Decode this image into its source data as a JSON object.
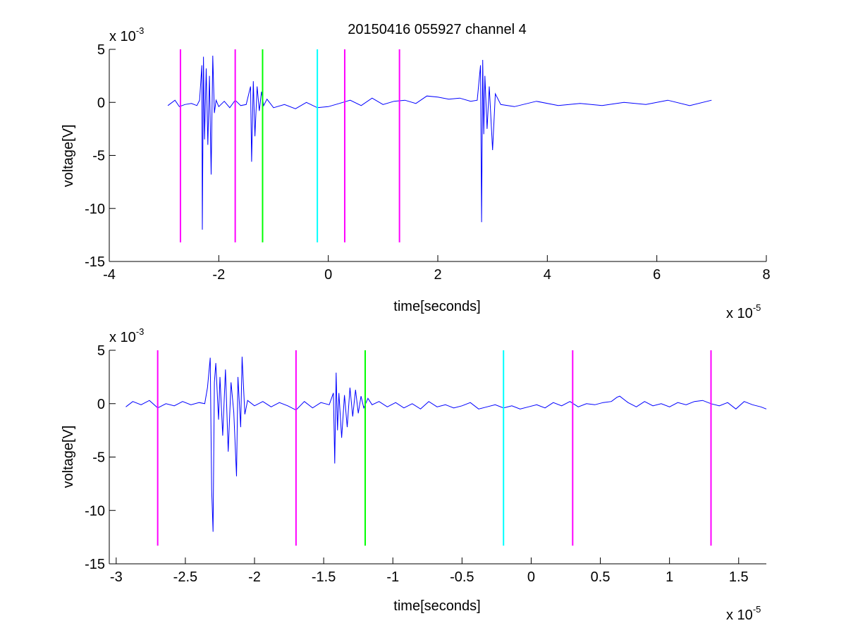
{
  "figure": {
    "title": "20150416 055927 channel 4"
  },
  "chart_data": [
    {
      "type": "line",
      "title": "20150416 055927 channel 4",
      "xlabel": "time[seconds]",
      "ylabel": "voltage[V]",
      "x_exponent_label": "x 10",
      "x_exponent_power": "-5",
      "y_exponent_label": "x 10",
      "y_exponent_power": "-3",
      "xlim": [
        -4,
        8
      ],
      "ylim": [
        -15,
        5
      ],
      "xticks": [
        -4,
        -2,
        0,
        2,
        4,
        6,
        8
      ],
      "xtick_labels": [
        "-4",
        "-2",
        "0",
        "2",
        "4",
        "6",
        "8"
      ],
      "yticks": [
        5,
        0,
        -5,
        -10,
        -15
      ],
      "ytick_labels": [
        "5",
        "0",
        "-5",
        "-10",
        "-15"
      ],
      "grid": false,
      "series": [
        {
          "color": "#0000ff",
          "x": [
            -2.93,
            -2.8,
            -2.72,
            -2.62,
            -2.5,
            -2.4,
            -2.35,
            -2.31,
            -2.3,
            -2.28,
            -2.26,
            -2.23,
            -2.2,
            -2.17,
            -2.14,
            -2.11,
            -2.08,
            -2.05,
            -2.0,
            -1.9,
            -1.8,
            -1.7,
            -1.6,
            -1.5,
            -1.42,
            -1.4,
            -1.37,
            -1.34,
            -1.3,
            -1.26,
            -1.22,
            -1.18,
            -1.12,
            -1.0,
            -0.8,
            -0.6,
            -0.4,
            -0.2,
            0.0,
            0.2,
            0.4,
            0.6,
            0.8,
            1.0,
            1.2,
            1.4,
            1.6,
            1.8,
            2.0,
            2.2,
            2.4,
            2.6,
            2.72,
            2.78,
            2.8,
            2.82,
            2.84,
            2.86,
            2.9,
            2.94,
            3.0,
            3.05,
            3.15,
            3.4,
            3.8,
            4.2,
            4.6,
            5.0,
            5.4,
            5.8,
            6.2,
            6.6,
            7.0
          ],
          "y": [
            -0.3,
            0.2,
            -0.4,
            -0.2,
            -0.1,
            -0.3,
            0.2,
            3.5,
            -12.0,
            4.3,
            -3.5,
            3.2,
            -4.0,
            2.5,
            -6.8,
            4.4,
            -1.0,
            0.2,
            -0.4,
            0.1,
            -0.5,
            0.2,
            -0.3,
            -0.2,
            1.5,
            -5.6,
            2.0,
            -3.2,
            1.5,
            -0.8,
            1.0,
            -0.3,
            0.3,
            -0.5,
            -0.2,
            -0.6,
            0.0,
            -0.5,
            -0.4,
            -0.1,
            0.2,
            -0.3,
            0.4,
            -0.2,
            0.1,
            0.2,
            -0.1,
            0.6,
            0.5,
            0.3,
            0.4,
            0.1,
            0.2,
            3.5,
            -11.3,
            4.0,
            -3.0,
            2.5,
            -2.5,
            1.5,
            -4.5,
            0.8,
            -0.2,
            -0.4,
            0.1,
            -0.3,
            -0.1,
            -0.3,
            0.0,
            -0.2,
            0.2,
            -0.3,
            0.2
          ]
        }
      ],
      "vertical_markers": [
        {
          "x": -2.7,
          "color": "#ff00ff",
          "y_top": 5,
          "y_bottom": -13.2
        },
        {
          "x": -1.7,
          "color": "#ff00ff",
          "y_top": 5,
          "y_bottom": -13.2
        },
        {
          "x": -1.2,
          "color": "#00ff00",
          "y_top": 5,
          "y_bottom": -13.2
        },
        {
          "x": -0.2,
          "color": "#00ffff",
          "y_top": 5,
          "y_bottom": -13.2
        },
        {
          "x": 0.3,
          "color": "#ff00ff",
          "y_top": 5,
          "y_bottom": -13.2
        },
        {
          "x": 1.3,
          "color": "#ff00ff",
          "y_top": 5,
          "y_bottom": -13.2
        }
      ]
    },
    {
      "type": "line",
      "title": "",
      "xlabel": "time[seconds]",
      "ylabel": "voltage[V]",
      "x_exponent_label": "x 10",
      "x_exponent_power": "-5",
      "y_exponent_label": "x 10",
      "y_exponent_power": "-3",
      "xlim": [
        -3.05,
        1.7
      ],
      "ylim": [
        -15,
        5
      ],
      "xticks": [
        -3,
        -2.5,
        -2,
        -1.5,
        -1,
        -0.5,
        0,
        0.5,
        1,
        1.5
      ],
      "xtick_labels": [
        "-3",
        "-2.5",
        "-2",
        "-1.5",
        "-1",
        "-0.5",
        "0",
        "0.5",
        "1",
        "1.5"
      ],
      "yticks": [
        5,
        0,
        -5,
        -10,
        -15
      ],
      "ytick_labels": [
        "5",
        "0",
        "-5",
        "-10",
        "-15"
      ],
      "grid": false,
      "series": [
        {
          "color": "#0000ff",
          "x": [
            -2.93,
            -2.88,
            -2.82,
            -2.76,
            -2.7,
            -2.64,
            -2.58,
            -2.52,
            -2.46,
            -2.4,
            -2.36,
            -2.34,
            -2.32,
            -2.31,
            -2.3,
            -2.29,
            -2.28,
            -2.26,
            -2.25,
            -2.23,
            -2.21,
            -2.19,
            -2.17,
            -2.15,
            -2.13,
            -2.12,
            -2.1,
            -2.09,
            -2.07,
            -2.05,
            -2.0,
            -1.94,
            -1.88,
            -1.82,
            -1.76,
            -1.7,
            -1.64,
            -1.58,
            -1.52,
            -1.46,
            -1.43,
            -1.42,
            -1.41,
            -1.4,
            -1.39,
            -1.37,
            -1.35,
            -1.33,
            -1.31,
            -1.29,
            -1.27,
            -1.25,
            -1.23,
            -1.21,
            -1.18,
            -1.15,
            -1.1,
            -1.04,
            -0.98,
            -0.92,
            -0.86,
            -0.8,
            -0.74,
            -0.68,
            -0.62,
            -0.56,
            -0.5,
            -0.44,
            -0.38,
            -0.32,
            -0.26,
            -0.2,
            -0.14,
            -0.08,
            -0.02,
            0.04,
            0.1,
            0.16,
            0.22,
            0.28,
            0.34,
            0.4,
            0.46,
            0.52,
            0.58,
            0.62,
            0.64,
            0.7,
            0.76,
            0.82,
            0.88,
            0.94,
            1.0,
            1.06,
            1.12,
            1.18,
            1.24,
            1.3,
            1.36,
            1.42,
            1.48,
            1.54,
            1.6,
            1.66,
            1.7
          ],
          "y": [
            -0.3,
            0.2,
            -0.1,
            0.3,
            -0.4,
            0.0,
            -0.2,
            0.2,
            -0.1,
            0.1,
            0.0,
            1.5,
            4.3,
            -8.0,
            -12.0,
            2.0,
            3.8,
            -1.5,
            2.5,
            -3.0,
            3.2,
            -4.5,
            2.0,
            -0.8,
            -6.8,
            2.5,
            -2.2,
            4.4,
            -1.0,
            0.3,
            -0.2,
            0.2,
            -0.3,
            0.1,
            -0.2,
            -0.6,
            0.2,
            -0.4,
            0.1,
            -0.1,
            1.0,
            -5.6,
            2.9,
            -2.5,
            1.0,
            -3.2,
            0.8,
            -2.2,
            1.5,
            -1.2,
            1.3,
            -0.9,
            0.7,
            -0.4,
            0.5,
            -0.1,
            0.2,
            -0.3,
            0.1,
            -0.4,
            0.0,
            -0.5,
            0.2,
            -0.3,
            -0.1,
            -0.4,
            -0.2,
            0.1,
            -0.5,
            -0.3,
            -0.1,
            -0.4,
            -0.2,
            -0.5,
            -0.3,
            -0.1,
            -0.4,
            0.1,
            -0.2,
            0.2,
            -0.3,
            0.0,
            -0.1,
            0.1,
            0.2,
            0.6,
            0.7,
            0.1,
            -0.3,
            0.2,
            -0.2,
            0.0,
            -0.3,
            0.1,
            -0.1,
            0.2,
            0.3,
            0.0,
            -0.2,
            0.1,
            -0.5,
            0.2,
            -0.1,
            -0.3,
            -0.5
          ]
        }
      ],
      "vertical_markers": [
        {
          "x": -2.7,
          "color": "#ff00ff",
          "y_top": 5,
          "y_bottom": -13.3
        },
        {
          "x": -1.7,
          "color": "#ff00ff",
          "y_top": 5,
          "y_bottom": -13.3
        },
        {
          "x": -1.2,
          "color": "#00ff00",
          "y_top": 5,
          "y_bottom": -13.3
        },
        {
          "x": -0.2,
          "color": "#00ffff",
          "y_top": 5,
          "y_bottom": -13.3
        },
        {
          "x": 0.3,
          "color": "#ff00ff",
          "y_top": 5,
          "y_bottom": -13.3
        },
        {
          "x": 1.3,
          "color": "#ff00ff",
          "y_top": 5,
          "y_bottom": -13.3
        }
      ]
    }
  ]
}
